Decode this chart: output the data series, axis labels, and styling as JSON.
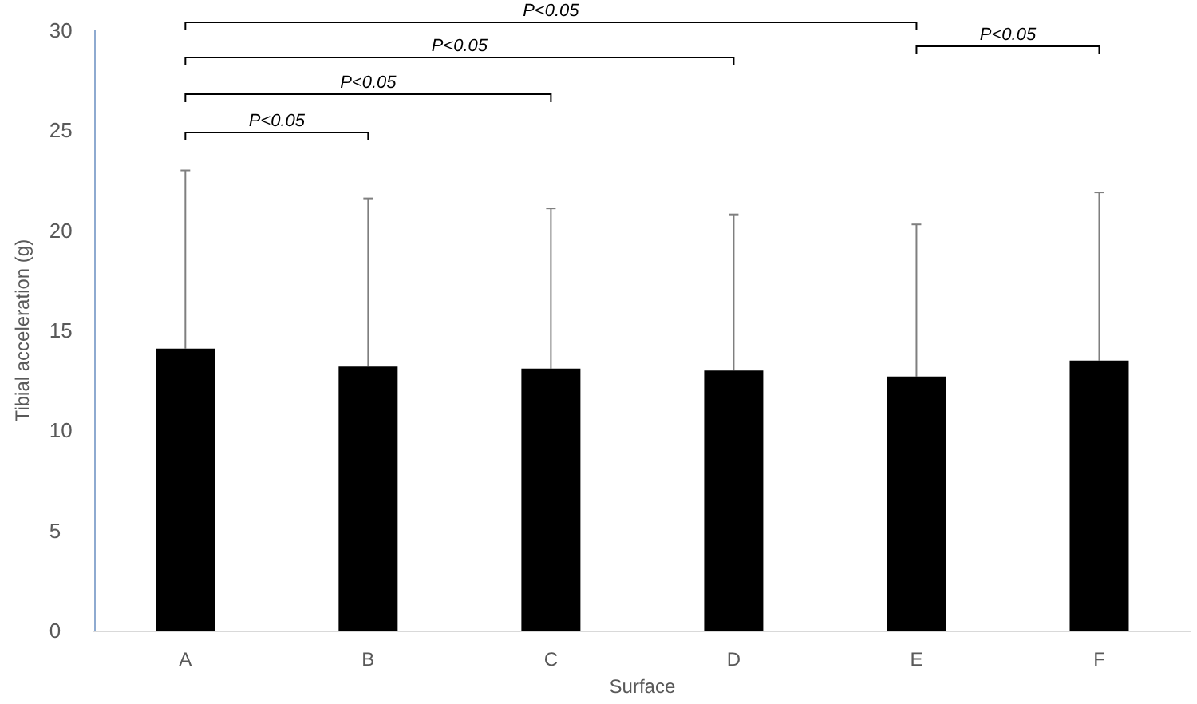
{
  "chart_data": {
    "type": "bar",
    "xlabel": "Surface",
    "ylabel": "Tibial acceleration (g)",
    "categories": [
      "A",
      "B",
      "C",
      "D",
      "E",
      "F"
    ],
    "values": [
      14.1,
      13.2,
      13.1,
      13.0,
      12.7,
      13.5
    ],
    "errors": [
      [
        14.1,
        23.0
      ],
      [
        13.2,
        21.6
      ],
      [
        13.1,
        21.1
      ],
      [
        13.0,
        20.8
      ],
      [
        12.7,
        20.3
      ],
      [
        13.5,
        21.9
      ]
    ],
    "color": "#000000",
    "ylim": [
      0,
      30
    ],
    "yticks": [
      0,
      5,
      10,
      15,
      20,
      25,
      30
    ],
    "grid": false,
    "annotations": [
      "P<0.05",
      "P<0.05",
      "P<0.05",
      "P<0.05",
      "P<0.05"
    ]
  }
}
